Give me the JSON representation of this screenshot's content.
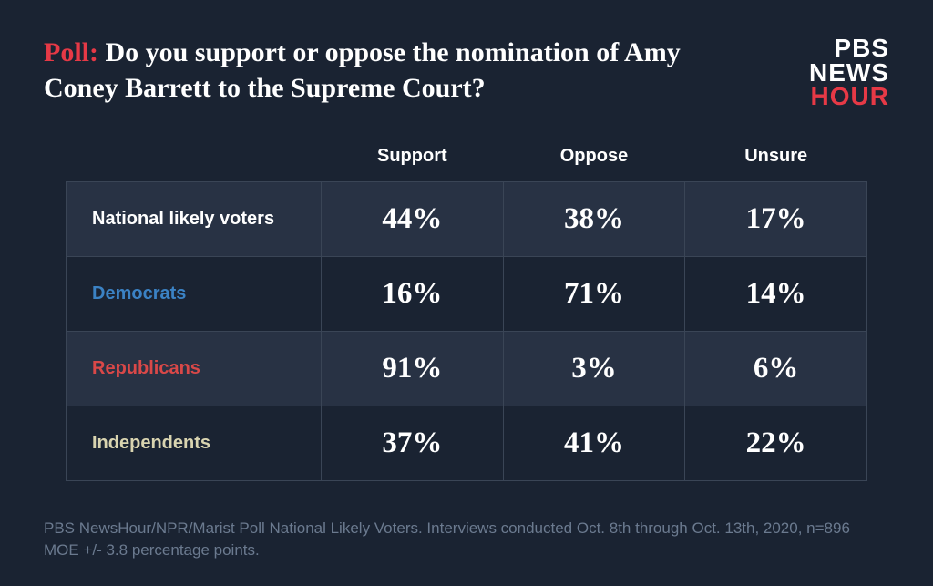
{
  "header": {
    "poll_label": "Poll: ",
    "poll_label_color": "#e63946",
    "question": "Do you support or oppose the nomination of Amy Coney Barrett to the Supreme Court?",
    "question_color": "#ffffff"
  },
  "logo": {
    "line1": "PBS",
    "line2_prefix": "NEWS",
    "line2_o_color": "#e63946",
    "line3": "HOUR",
    "line3_color": "#e63946"
  },
  "table": {
    "type": "table",
    "background_color": "#1a2332",
    "alt_row_color": "#283244",
    "border_color": "#3a4556",
    "header_fontsize": 20,
    "value_fontsize": 33,
    "label_fontsize": 20,
    "columns": [
      "Support",
      "Oppose",
      "Unsure"
    ],
    "rows": [
      {
        "label": "National likely voters",
        "label_color": "#ffffff",
        "values": [
          "44%",
          "38%",
          "17%"
        ]
      },
      {
        "label": "Democrats",
        "label_color": "#3b82c4",
        "values": [
          "16%",
          "71%",
          "14%"
        ]
      },
      {
        "label": "Republicans",
        "label_color": "#d94848",
        "values": [
          "91%",
          "3%",
          "6%"
        ]
      },
      {
        "label": "Independents",
        "label_color": "#d9d4b0",
        "values": [
          "37%",
          "41%",
          "22%"
        ]
      }
    ]
  },
  "footnote": {
    "text": "PBS NewsHour/NPR/Marist Poll National Likely Voters. Interviews conducted Oct. 8th through Oct. 13th, 2020, n=896 MOE +/- 3.8 percentage points.",
    "color": "#6b7a8f",
    "fontsize": 17
  }
}
